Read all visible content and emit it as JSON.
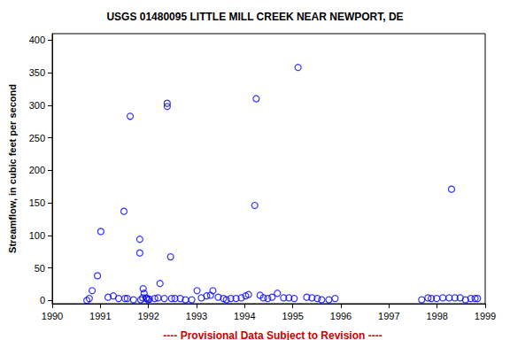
{
  "chart_data": {
    "type": "scatter",
    "title": "USGS 01480095 LITTLE MILL CREEK NEAR NEWPORT, DE",
    "y_label": "Streamflow, in cubic feet per second",
    "annotation": "---- Provisional Data Subject to Revision ----",
    "color": "#0000ff",
    "marker": "open_circle",
    "grid": false,
    "x": [
      1990.72,
      1990.77,
      1990.83,
      1990.94,
      1991.01,
      1991.16,
      1991.27,
      1991.38,
      1991.49,
      1991.62,
      1991.51,
      1991.56,
      1991.69,
      1991.82,
      1991.82,
      1991.89,
      1991.84,
      1991.88,
      1991.91,
      1991.95,
      1991.97,
      1991.99,
      1992.02,
      1992.24,
      1992.39,
      1992.39,
      1992.46,
      1992.13,
      1992.2,
      1992.33,
      1992.48,
      1992.55,
      1992.66,
      1992.77,
      1992.9,
      1993.01,
      1993.1,
      1993.21,
      1993.29,
      1993.34,
      1993.45,
      1993.56,
      1993.62,
      1993.71,
      1993.82,
      1993.93,
      1994.02,
      1994.08,
      1994.21,
      1994.24,
      1994.32,
      1994.39,
      1994.48,
      1994.57,
      1994.68,
      1994.81,
      1994.92,
      1995.03,
      1995.11,
      1995.29,
      1995.4,
      1995.51,
      1995.6,
      1995.75,
      1995.88,
      1997.68,
      1997.81,
      1997.88,
      1997.99,
      1998.12,
      1998.25,
      1998.37,
      1998.3,
      1998.48,
      1998.59,
      1998.7,
      1998.79,
      1998.84
    ],
    "values": [
      0,
      3,
      15,
      38,
      106,
      5,
      7,
      3,
      137,
      283,
      3,
      3,
      1,
      94,
      73,
      18,
      1,
      4,
      11,
      4,
      3,
      1,
      2,
      26,
      303,
      298,
      67,
      3,
      4,
      3,
      3,
      3,
      3,
      1,
      1,
      15,
      4,
      7,
      8,
      15,
      5,
      3,
      1,
      3,
      3,
      4,
      7,
      9,
      146,
      310,
      8,
      4,
      3,
      5,
      11,
      4,
      4,
      3,
      358,
      5,
      4,
      3,
      1,
      1,
      3,
      1,
      4,
      3,
      3,
      4,
      4,
      4,
      171,
      4,
      1,
      3,
      3,
      3
    ],
    "xlim": [
      1990,
      1999
    ],
    "xticks": [
      1990,
      1991,
      1992,
      1993,
      1994,
      1995,
      1996,
      1997,
      1998,
      1999
    ],
    "ylim": [
      -5,
      410
    ],
    "yticks": [
      0,
      50,
      100,
      150,
      200,
      250,
      300,
      350,
      400
    ]
  }
}
